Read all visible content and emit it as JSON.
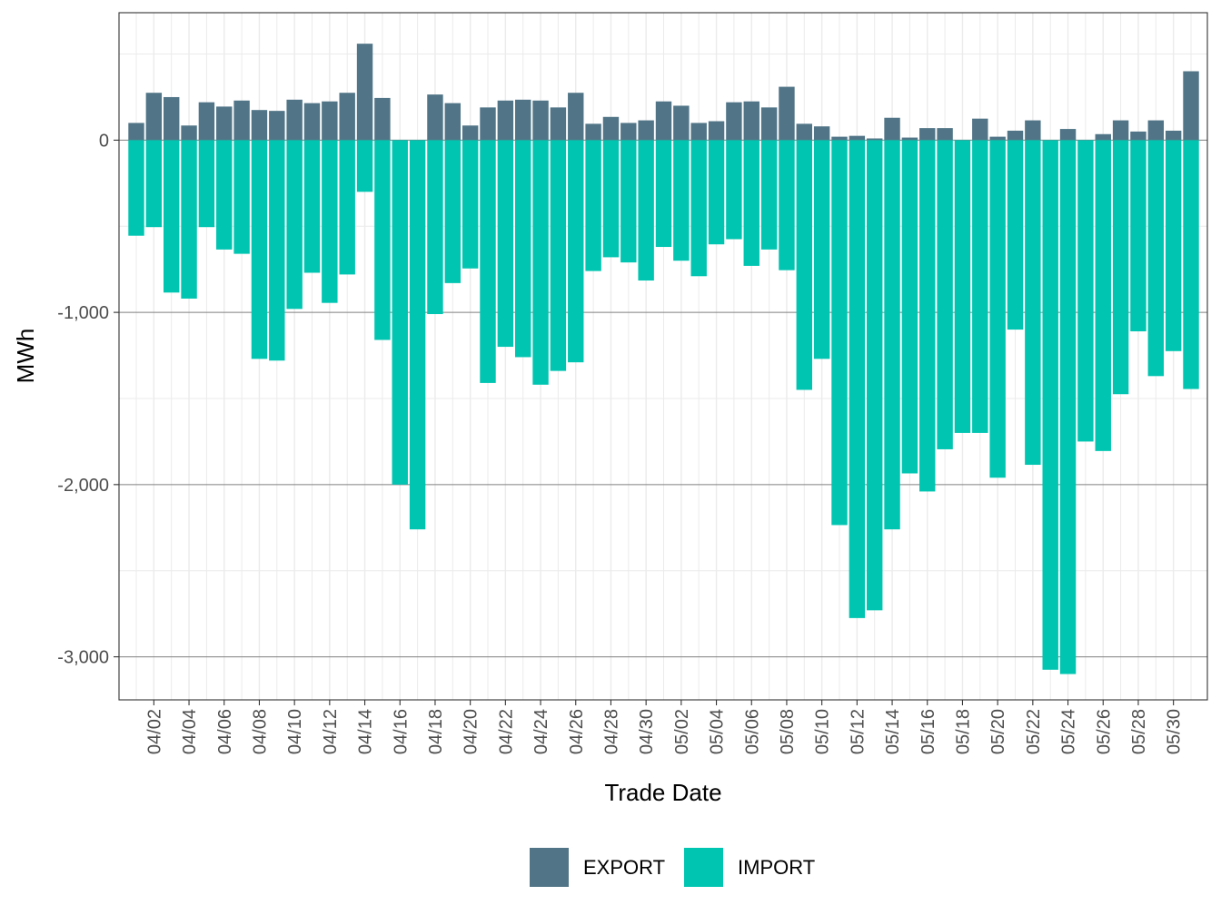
{
  "chart_data": {
    "type": "bar",
    "stacked": true,
    "xlabel": "Trade Date",
    "ylabel": "MWh",
    "ylim": [
      -3250,
      740
    ],
    "y_ticks": [
      0,
      -1000,
      -2000,
      -3000
    ],
    "y_tick_labels": [
      "0",
      "-1,000",
      "-2,000",
      "-3,000"
    ],
    "categories": [
      "04/01",
      "04/02",
      "04/03",
      "04/04",
      "04/05",
      "04/06",
      "04/07",
      "04/08",
      "04/09",
      "04/10",
      "04/11",
      "04/12",
      "04/13",
      "04/14",
      "04/15",
      "04/16",
      "04/17",
      "04/18",
      "04/19",
      "04/20",
      "04/21",
      "04/22",
      "04/23",
      "04/24",
      "04/25",
      "04/26",
      "04/27",
      "04/28",
      "04/29",
      "04/30",
      "05/01",
      "05/02",
      "05/03",
      "05/04",
      "05/05",
      "05/06",
      "05/07",
      "05/08",
      "05/09",
      "05/10",
      "05/11",
      "05/12",
      "05/13",
      "05/14",
      "05/15",
      "05/16",
      "05/17",
      "05/18",
      "05/19",
      "05/20",
      "05/21",
      "05/22",
      "05/23",
      "05/24",
      "05/25",
      "05/26",
      "05/27",
      "05/28",
      "05/29",
      "05/30",
      "05/31"
    ],
    "x_tick_labels": [
      "04/02",
      "04/04",
      "04/06",
      "04/08",
      "04/10",
      "04/12",
      "04/14",
      "04/16",
      "04/18",
      "04/20",
      "04/22",
      "04/24",
      "04/26",
      "04/28",
      "04/30",
      "05/02",
      "05/04",
      "05/06",
      "05/08",
      "05/10",
      "05/12",
      "05/14",
      "05/16",
      "05/18",
      "05/20",
      "05/22",
      "05/24",
      "05/26",
      "05/28",
      "05/30"
    ],
    "series": [
      {
        "name": "EXPORT",
        "color": "#517587",
        "values": [
          100,
          275,
          250,
          85,
          220,
          195,
          230,
          175,
          170,
          235,
          215,
          225,
          275,
          560,
          245,
          0,
          0,
          265,
          215,
          85,
          190,
          230,
          235,
          230,
          190,
          275,
          95,
          135,
          100,
          115,
          225,
          200,
          100,
          110,
          220,
          225,
          190,
          310,
          95,
          80,
          20,
          25,
          10,
          130,
          15,
          70,
          70,
          0,
          125,
          20,
          55,
          115,
          0,
          65,
          0,
          35,
          115,
          50,
          115,
          55,
          400
        ]
      },
      {
        "name": "IMPORT",
        "color": "#00c5b1",
        "values": [
          -555,
          -505,
          -885,
          -920,
          -505,
          -635,
          -660,
          -1270,
          -1280,
          -980,
          -770,
          -945,
          -780,
          -300,
          -1160,
          -2000,
          -2260,
          -1010,
          -830,
          -745,
          -1410,
          -1200,
          -1260,
          -1420,
          -1340,
          -1290,
          -760,
          -680,
          -710,
          -815,
          -620,
          -700,
          -790,
          -605,
          -575,
          -730,
          -635,
          -755,
          -1450,
          -1270,
          -2235,
          -2775,
          -2730,
          -2260,
          -1935,
          -2040,
          -1795,
          -1700,
          -1700,
          -1960,
          -1100,
          -1885,
          -3075,
          -3100,
          -1750,
          -1805,
          -1475,
          -1110,
          -1370,
          -1225,
          -1445
        ]
      }
    ],
    "legend": {
      "position": "bottom",
      "entries": [
        "EXPORT",
        "IMPORT"
      ]
    }
  }
}
